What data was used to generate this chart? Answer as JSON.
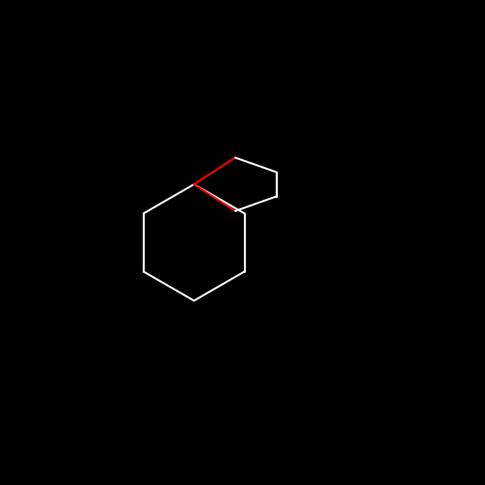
{
  "background_color": "#000000",
  "bond_color": "#000000",
  "bond_width": 2.0,
  "atom_colors": {
    "O": "#ff0000",
    "C": "#000000",
    "H": "#000000"
  },
  "font_size": 16,
  "oh_font_size": 16
}
